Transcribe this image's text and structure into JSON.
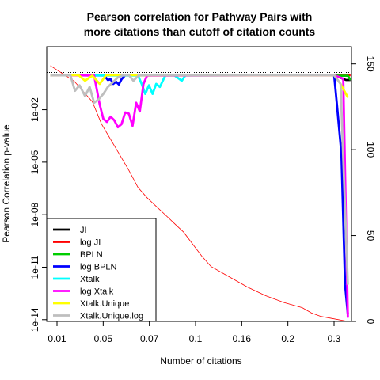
{
  "chart_data": {
    "type": "line",
    "title_lines": [
      "Pearson correlation for Pathway Pairs with",
      "more citations than cutoff of citation counts"
    ],
    "xlabel": "Number of citations",
    "ylabel": "Pearson Correlation p-value",
    "x_tick_labels": [
      "0.01",
      "0.05",
      "0.07",
      "0.1",
      "0.16",
      "0.2",
      "0.3"
    ],
    "y_left": {
      "scale": "log10",
      "range_exp": [
        -14.1,
        1.6
      ],
      "ticks": [
        {
          "exp": -2,
          "label": "1e-02"
        },
        {
          "exp": -5,
          "label": "1e-05"
        },
        {
          "exp": -8,
          "label": "1e-08"
        },
        {
          "exp": -11,
          "label": "1e-11"
        },
        {
          "exp": -14,
          "label": "1e-14"
        }
      ]
    },
    "y_right": {
      "range": [
        0,
        160
      ],
      "ticks": [
        0,
        50,
        100,
        150
      ]
    },
    "x_range": [
      0,
      0.334
    ],
    "reference_line": {
      "axis": "right",
      "value": 145,
      "style": "dotted"
    },
    "legend": {
      "position": "bottom-left"
    },
    "series": [
      {
        "name": "JI",
        "color": "#000000",
        "points": [
          [
            0.004,
            0.95
          ],
          [
            0.315,
            0.95
          ],
          [
            0.328,
            0.5
          ],
          [
            0.333,
            0.5
          ]
        ]
      },
      {
        "name": "log JI",
        "color": "#ff0000",
        "points": [
          [
            0.004,
            0.95
          ],
          [
            0.315,
            0.95
          ],
          [
            0.327,
            0.95
          ],
          [
            0.333,
            0.95
          ]
        ]
      },
      {
        "name": "BPLN",
        "color": "#00cd00",
        "points": [
          [
            0.004,
            0.95
          ],
          [
            0.315,
            0.95
          ],
          [
            0.32,
            0.88
          ],
          [
            0.33,
            0.88
          ],
          [
            0.333,
            0.5
          ]
        ]
      },
      {
        "name": "log BPLN",
        "color": "#0000ff",
        "points": [
          [
            0.004,
            0.95
          ],
          [
            0.063,
            0.92
          ],
          [
            0.067,
            0.5
          ],
          [
            0.07,
            0.55
          ],
          [
            0.073,
            0.3
          ],
          [
            0.076,
            0.4
          ],
          [
            0.079,
            0.28
          ],
          [
            0.082,
            0.55
          ],
          [
            0.086,
            0.95
          ],
          [
            0.315,
            0.95
          ],
          [
            0.318,
            0.02
          ],
          [
            0.323,
            3e-05
          ],
          [
            0.327,
            1e-12
          ],
          [
            0.33,
            2e-14
          ]
        ]
      },
      {
        "name": "Xtalk",
        "color": "#00ffff",
        "points": [
          [
            0.004,
            0.95
          ],
          [
            0.1,
            0.9
          ],
          [
            0.104,
            0.3
          ],
          [
            0.108,
            0.08
          ],
          [
            0.112,
            0.25
          ],
          [
            0.116,
            0.08
          ],
          [
            0.12,
            0.3
          ],
          [
            0.124,
            0.2
          ],
          [
            0.128,
            0.55
          ],
          [
            0.13,
            0.92
          ],
          [
            0.14,
            0.92
          ],
          [
            0.148,
            0.45
          ],
          [
            0.152,
            0.92
          ],
          [
            0.315,
            0.95
          ]
        ]
      },
      {
        "name": "log Xtalk",
        "color": "#ff00ff",
        "points": [
          [
            0.004,
            0.95
          ],
          [
            0.052,
            0.9
          ],
          [
            0.058,
            0.02
          ],
          [
            0.062,
            0.003
          ],
          [
            0.066,
            0.002
          ],
          [
            0.07,
            0.004
          ],
          [
            0.074,
            0.0025
          ],
          [
            0.078,
            0.001
          ],
          [
            0.082,
            0.0015
          ],
          [
            0.086,
            0.007
          ],
          [
            0.09,
            0.006
          ],
          [
            0.094,
            0.0012
          ],
          [
            0.098,
            0.025
          ],
          [
            0.102,
            0.008
          ],
          [
            0.106,
            0.3
          ],
          [
            0.11,
            0.9
          ],
          [
            0.315,
            0.95
          ],
          [
            0.325,
            0.6
          ],
          [
            0.33,
            1.3e-14
          ]
        ]
      },
      {
        "name": "Xtalk.Unique",
        "color": "#ffff00",
        "points": [
          [
            0.004,
            0.95
          ],
          [
            0.035,
            0.95
          ],
          [
            0.042,
            0.45
          ],
          [
            0.05,
            0.9
          ],
          [
            0.058,
            0.3
          ],
          [
            0.065,
            0.95
          ],
          [
            0.315,
            0.95
          ],
          [
            0.322,
            0.3
          ],
          [
            0.33,
            0.05
          ]
        ]
      },
      {
        "name": "Xtalk.Unique.log",
        "color": "#bebebe",
        "points": [
          [
            0.004,
            0.95
          ],
          [
            0.026,
            0.92
          ],
          [
            0.031,
            0.12
          ],
          [
            0.036,
            0.25
          ],
          [
            0.042,
            0.06
          ],
          [
            0.047,
            0.2
          ],
          [
            0.052,
            0.025
          ],
          [
            0.057,
            0.04
          ],
          [
            0.062,
            0.08
          ],
          [
            0.067,
            0.2
          ],
          [
            0.072,
            0.35
          ],
          [
            0.078,
            0.7
          ],
          [
            0.083,
            0.92
          ],
          [
            0.09,
            0.95
          ],
          [
            0.095,
            0.45
          ],
          [
            0.101,
            0.95
          ],
          [
            0.315,
            0.95
          ],
          [
            0.322,
            0.3
          ],
          [
            0.33,
            1e-12
          ]
        ]
      }
    ],
    "counts_series": {
      "color": "#ff0000",
      "axis": "right",
      "points": [
        [
          0.004,
          149
        ],
        [
          0.03,
          140
        ],
        [
          0.05,
          128
        ],
        [
          0.06,
          115
        ],
        [
          0.07,
          106
        ],
        [
          0.08,
          97
        ],
        [
          0.09,
          88
        ],
        [
          0.1,
          78
        ],
        [
          0.11,
          72
        ],
        [
          0.12,
          67
        ],
        [
          0.13,
          62
        ],
        [
          0.14,
          57
        ],
        [
          0.15,
          52
        ],
        [
          0.16,
          45
        ],
        [
          0.17,
          38
        ],
        [
          0.18,
          32
        ],
        [
          0.2,
          26
        ],
        [
          0.22,
          20
        ],
        [
          0.24,
          15
        ],
        [
          0.26,
          11
        ],
        [
          0.28,
          8
        ],
        [
          0.29,
          5
        ],
        [
          0.3,
          3
        ],
        [
          0.31,
          2
        ],
        [
          0.33,
          0
        ]
      ]
    }
  }
}
